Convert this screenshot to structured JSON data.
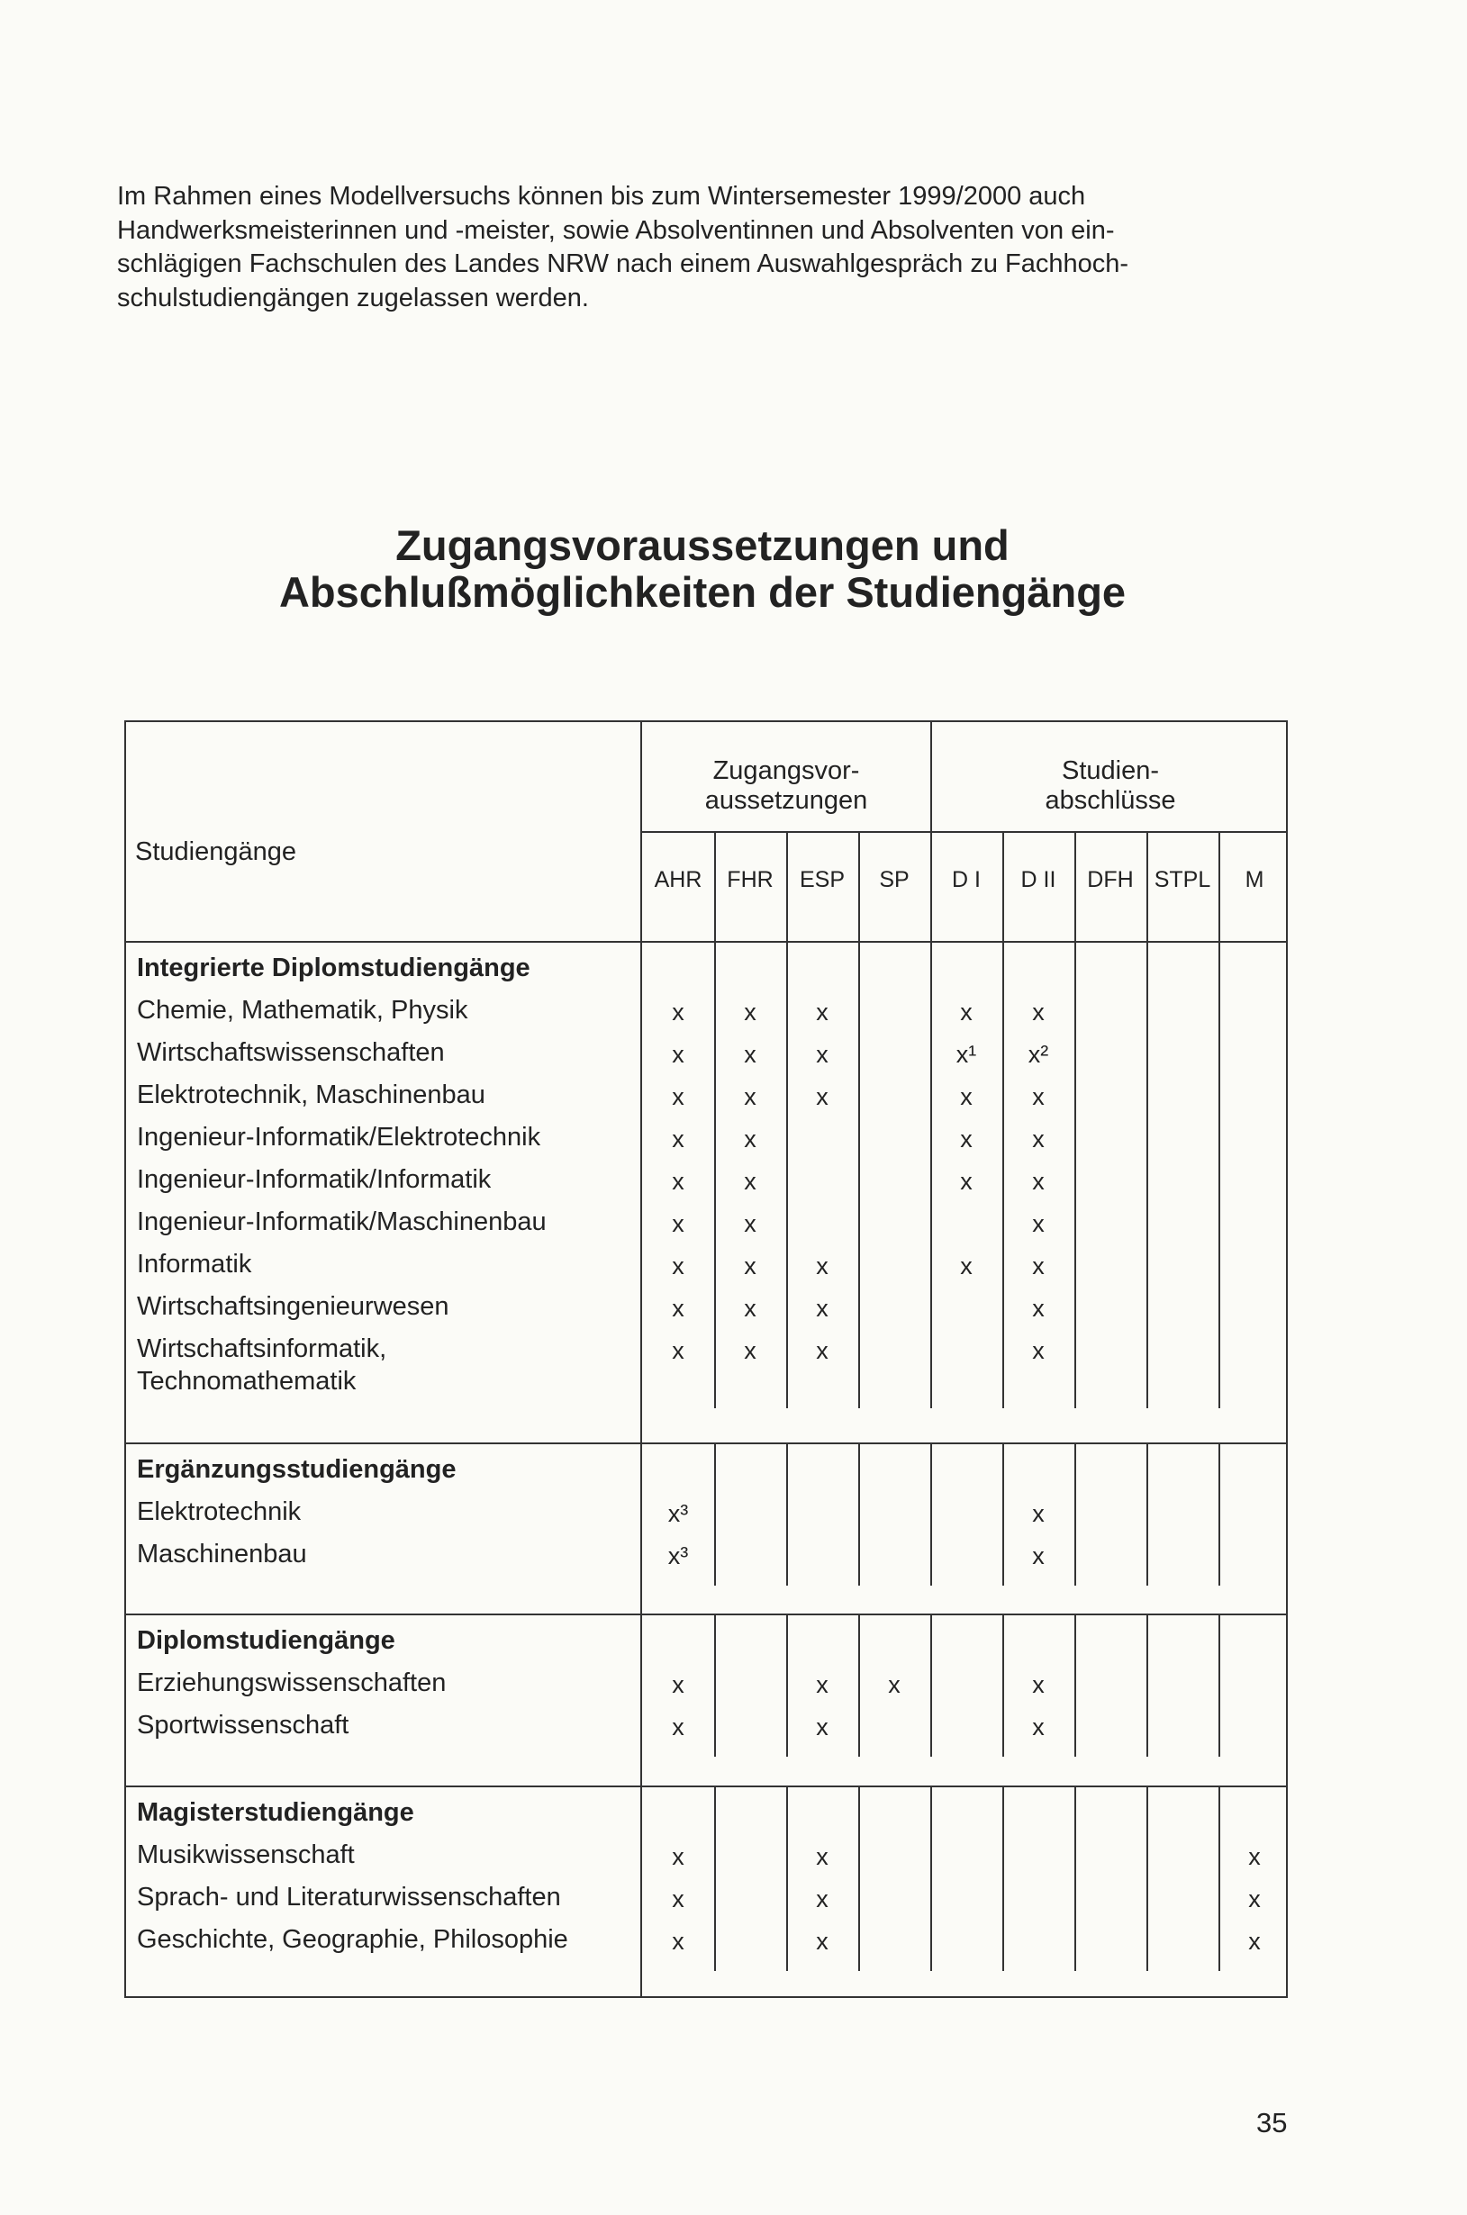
{
  "intro_lines": [
    "Im Rahmen eines Modellversuchs können bis zum Wintersemester 1999/2000 auch",
    "Handwerksmeisterinnen und -meister, sowie Absolventinnen und Absolventen von ein-",
    "schlägigen Fachschulen des Landes NRW nach einem Auswahlgespräch zu Fachhoch-",
    "schulstudiengängen zugelassen werden."
  ],
  "title_lines": [
    "Zugangsvoraussetzungen und",
    "Abschlußmöglichkeiten der Studiengänge"
  ],
  "table": {
    "row_header": "Studiengänge",
    "group_headers": [
      [
        "Zugangsvor-",
        "aussetzungen"
      ],
      [
        "Studien-",
        "abschlüsse"
      ]
    ],
    "columns": [
      "AHR",
      "FHR",
      "ESP",
      "SP",
      "D I",
      "D II",
      "DFH",
      "STPL",
      "M"
    ],
    "sections": [
      {
        "title": "Integrierte Diplomstudiengänge",
        "rows": [
          {
            "name": [
              "Chemie, Mathematik, Physik"
            ],
            "cells": [
              "x",
              "x",
              "x",
              "",
              "x",
              "x",
              "",
              "",
              ""
            ]
          },
          {
            "name": [
              "Wirtschaftswissenschaften"
            ],
            "cells": [
              "x",
              "x",
              "x",
              "",
              "x¹",
              "x²",
              "",
              "",
              ""
            ]
          },
          {
            "name": [
              "Elektrotechnik, Maschinenbau"
            ],
            "cells": [
              "x",
              "x",
              "x",
              "",
              "x",
              "x",
              "",
              "",
              ""
            ]
          },
          {
            "name": [
              "Ingenieur-Informatik/Elektrotechnik"
            ],
            "cells": [
              "x",
              "x",
              "",
              "",
              "x",
              "x",
              "",
              "",
              ""
            ]
          },
          {
            "name": [
              "Ingenieur-Informatik/Informatik"
            ],
            "cells": [
              "x",
              "x",
              "",
              "",
              "x",
              "x",
              "",
              "",
              ""
            ]
          },
          {
            "name": [
              "Ingenieur-Informatik/Maschinenbau"
            ],
            "cells": [
              "x",
              "x",
              "",
              "",
              "",
              "x",
              "",
              "",
              ""
            ]
          },
          {
            "name": [
              "Informatik"
            ],
            "cells": [
              "x",
              "x",
              "x",
              "",
              "x",
              "x",
              "",
              "",
              ""
            ]
          },
          {
            "name": [
              "Wirtschaftsingenieurwesen"
            ],
            "cells": [
              "x",
              "x",
              "x",
              "",
              "",
              "x",
              "",
              "",
              ""
            ]
          },
          {
            "name": [
              "Wirtschaftsinformatik,",
              "Technomathematik"
            ],
            "cells": [
              "x",
              "x",
              "x",
              "",
              "",
              "x",
              "",
              "",
              ""
            ]
          }
        ]
      },
      {
        "title": "Ergänzungsstudiengänge",
        "rows": [
          {
            "name": [
              "Elektrotechnik"
            ],
            "cells": [
              "x³",
              "",
              "",
              "",
              "",
              "x",
              "",
              "",
              ""
            ]
          },
          {
            "name": [
              "Maschinenbau"
            ],
            "cells": [
              "x³",
              "",
              "",
              "",
              "",
              "x",
              "",
              "",
              ""
            ]
          }
        ]
      },
      {
        "title": "Diplomstudiengänge",
        "rows": [
          {
            "name": [
              "Erziehungswissenschaften"
            ],
            "cells": [
              "x",
              "",
              "x",
              "x",
              "",
              "x",
              "",
              "",
              ""
            ]
          },
          {
            "name": [
              "Sportwissenschaft"
            ],
            "cells": [
              "x",
              "",
              "x",
              "",
              "",
              "x",
              "",
              "",
              ""
            ]
          }
        ]
      },
      {
        "title": "Magisterstudiengänge",
        "rows": [
          {
            "name": [
              "Musikwissenschaft"
            ],
            "cells": [
              "x",
              "",
              "x",
              "",
              "",
              "",
              "",
              "",
              "x"
            ]
          },
          {
            "name": [
              "Sprach- und Literaturwissenschaften"
            ],
            "cells": [
              "x",
              "",
              "x",
              "",
              "",
              "",
              "",
              "",
              "x"
            ]
          },
          {
            "name": [
              "Geschichte, Geographie, Philosophie"
            ],
            "cells": [
              "x",
              "",
              "x",
              "",
              "",
              "",
              "",
              "",
              "x"
            ]
          }
        ]
      }
    ]
  },
  "page_number": "35"
}
